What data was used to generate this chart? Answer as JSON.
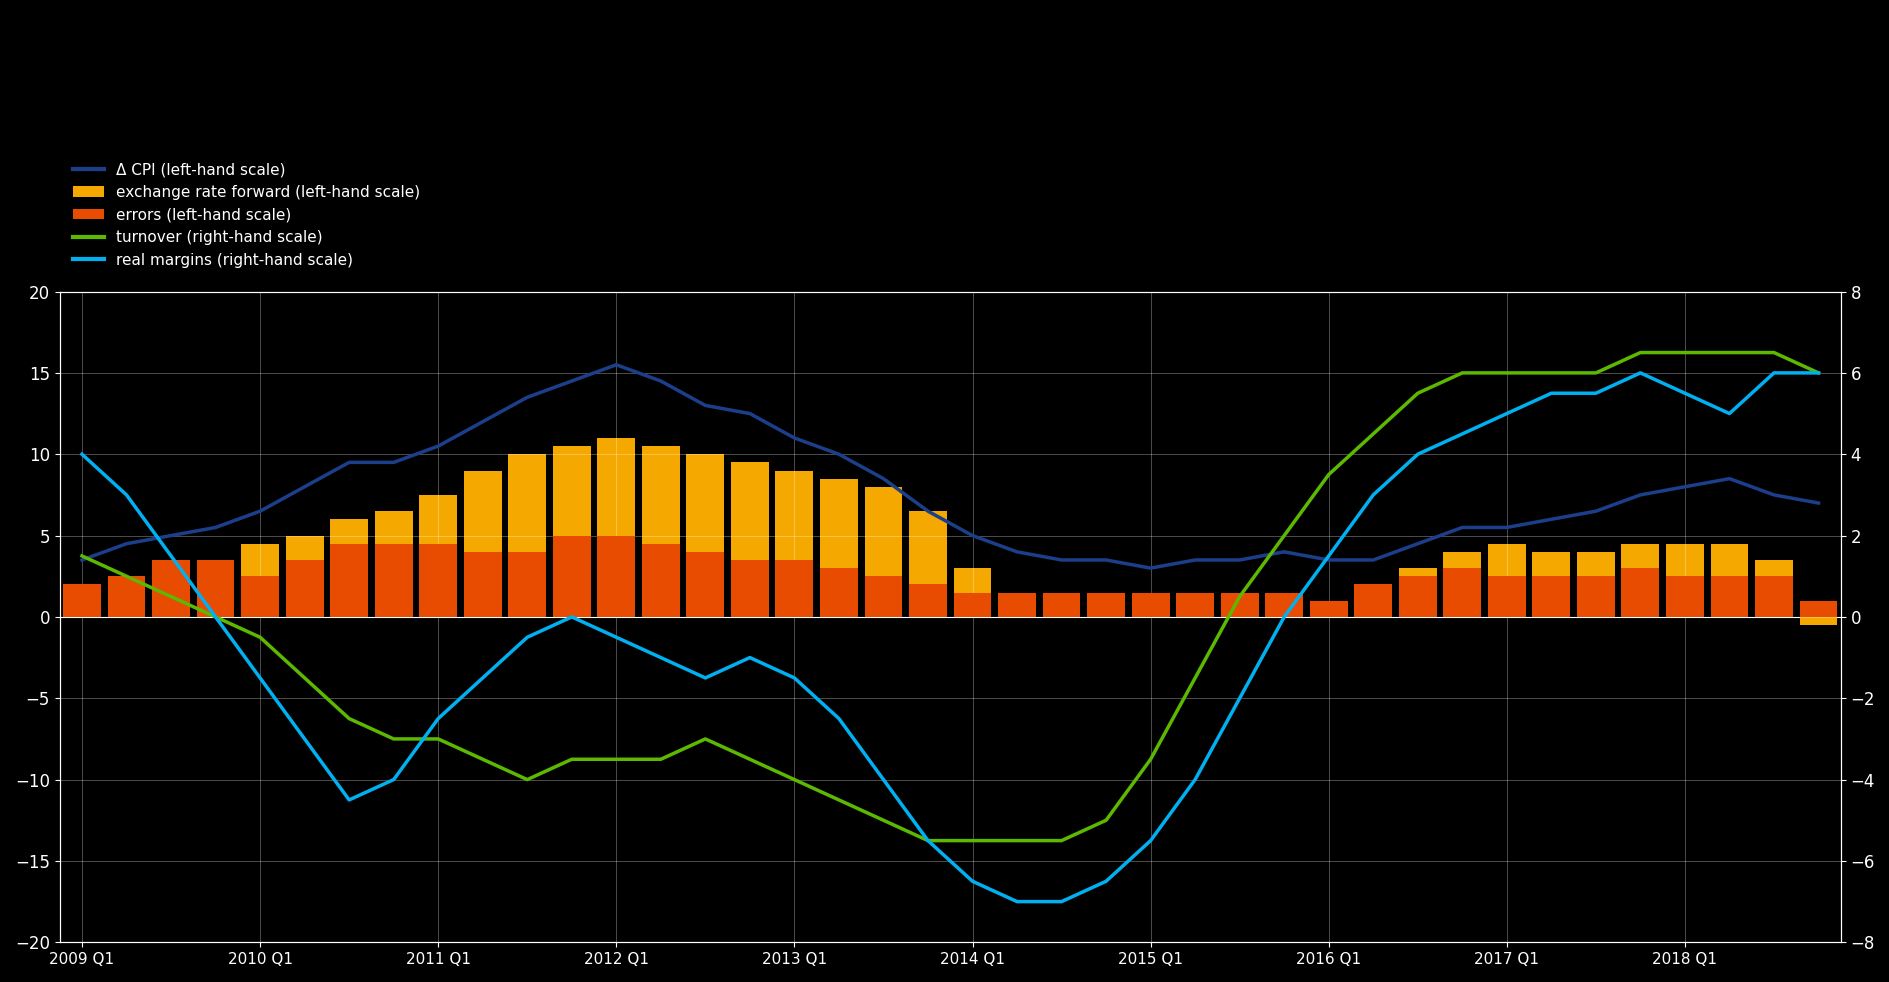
{
  "left_ylim": [
    -20,
    20
  ],
  "right_ylim": [
    -8,
    8
  ],
  "left_yticks": [
    -20,
    -15,
    -10,
    -5,
    0,
    5,
    10,
    15,
    20
  ],
  "right_yticks": [
    -8,
    -6,
    -4,
    -2,
    0,
    2,
    4,
    6,
    8
  ],
  "legend_labels": [
    "Δ CPI (left-hand scale)",
    "exchange rate forward (left-hand scale)",
    "errors (left-hand scale)",
    "turnover (right-hand scale)",
    "real margins (right-hand scale)"
  ],
  "legend_colors": [
    "#1b3f8b",
    "#f5a800",
    "#e84c00",
    "#5cb800",
    "#00b0f0"
  ],
  "bg_color": "#000000",
  "fig_color": "#000000",
  "grid_color": "#444444",
  "x_tick_labels": [
    "2009 Q1",
    "2010 Q1",
    "2011 Q1",
    "2012 Q1",
    "2013 Q1",
    "2014 Q1",
    "2015 Q1",
    "2016 Q1",
    "2017 Q1",
    "2018 Q1"
  ],
  "x_tick_positions": [
    0,
    4,
    8,
    12,
    16,
    20,
    24,
    28,
    32,
    36
  ],
  "n_bars": 40,
  "vec_cpi": [
    3.5,
    4.5,
    5.0,
    5.5,
    6.5,
    8.0,
    9.5,
    9.5,
    10.5,
    12.0,
    13.5,
    14.5,
    15.5,
    14.5,
    13.0,
    12.5,
    11.0,
    10.0,
    8.5,
    6.5,
    5.0,
    4.0,
    3.5,
    3.5,
    3.0,
    3.5,
    3.5,
    4.0,
    3.5,
    3.5,
    4.5,
    5.5,
    5.5,
    6.0,
    6.5,
    7.5,
    8.0,
    8.5,
    7.5,
    7.0
  ],
  "exch_fwd": [
    1.5,
    1.0,
    1.0,
    1.5,
    4.5,
    5.0,
    6.0,
    6.5,
    7.5,
    9.0,
    10.0,
    10.5,
    11.0,
    10.5,
    10.0,
    9.5,
    9.0,
    8.5,
    8.0,
    6.5,
    3.0,
    1.5,
    1.5,
    1.5,
    1.5,
    1.0,
    1.0,
    1.5,
    0.0,
    1.5,
    3.0,
    4.0,
    4.5,
    4.0,
    4.0,
    4.5,
    4.5,
    4.5,
    3.5,
    -0.5
  ],
  "errors": [
    2.0,
    2.5,
    3.5,
    3.5,
    2.5,
    3.5,
    4.5,
    4.5,
    4.5,
    4.0,
    4.0,
    5.0,
    5.0,
    4.5,
    4.0,
    3.5,
    3.5,
    3.0,
    2.5,
    2.0,
    1.5,
    1.5,
    1.5,
    1.5,
    1.5,
    1.5,
    1.5,
    1.5,
    1.0,
    2.0,
    2.5,
    3.0,
    2.5,
    2.5,
    2.5,
    3.0,
    2.5,
    2.5,
    2.5,
    1.0
  ],
  "turnover_rhs": [
    1.5,
    1.0,
    0.5,
    0.0,
    -0.5,
    -1.5,
    -2.5,
    -3.0,
    -3.0,
    -3.5,
    -4.0,
    -3.5,
    -3.5,
    -3.5,
    -3.0,
    -3.5,
    -4.0,
    -4.5,
    -5.0,
    -5.5,
    -5.5,
    -5.5,
    -5.5,
    -5.0,
    -3.5,
    -1.5,
    0.5,
    2.0,
    3.5,
    4.5,
    5.5,
    6.0,
    6.0,
    6.0,
    6.0,
    6.5,
    6.5,
    6.5,
    6.5,
    6.0
  ],
  "real_margins_rhs": [
    4.0,
    3.0,
    1.5,
    0.0,
    -1.5,
    -3.0,
    -4.5,
    -4.0,
    -2.5,
    -1.5,
    -0.5,
    0.0,
    -0.5,
    -1.0,
    -1.5,
    -1.0,
    -1.5,
    -2.5,
    -4.0,
    -5.5,
    -6.5,
    -7.0,
    -7.0,
    -6.5,
    -5.5,
    -4.0,
    -2.0,
    0.0,
    1.5,
    3.0,
    4.0,
    4.5,
    5.0,
    5.5,
    5.5,
    6.0,
    5.5,
    5.0,
    6.0,
    6.0
  ]
}
